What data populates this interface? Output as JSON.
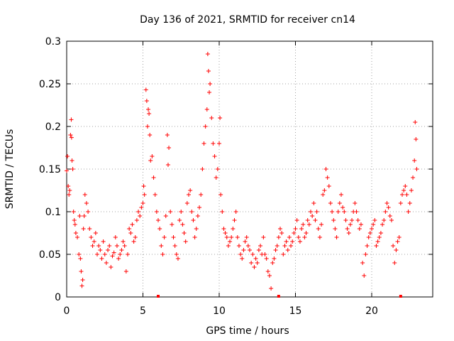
{
  "chart_data": {
    "type": "scatter",
    "title": "Day 136 of 2021, SRMTID for receiver cn14",
    "xlabel": "GPS time / hours",
    "ylabel": "SRMTID / TECUs",
    "xlim": [
      0,
      24
    ],
    "ylim": [
      0,
      0.3
    ],
    "xticks": [
      0,
      5,
      10,
      15,
      20
    ],
    "xtick_labels": [
      "0",
      "5",
      "10",
      "15",
      "20"
    ],
    "yticks": [
      0,
      0.05,
      0.1,
      0.15,
      0.2,
      0.25,
      0.3
    ],
    "ytick_labels": [
      "0",
      "0.05",
      "0.1",
      "0.15",
      "0.2",
      "0.25",
      "0.3"
    ],
    "grid": true,
    "marker": "+",
    "series": [
      {
        "name": "SRMTID",
        "color": "#ff0000",
        "points": [
          [
            0.0,
            0.148
          ],
          [
            0.05,
            0.165
          ],
          [
            0.1,
            0.13
          ],
          [
            0.15,
            0.12
          ],
          [
            0.2,
            0.125
          ],
          [
            0.25,
            0.19
          ],
          [
            0.3,
            0.208
          ],
          [
            0.32,
            0.187
          ],
          [
            0.35,
            0.16
          ],
          [
            0.4,
            0.15
          ],
          [
            0.45,
            0.1
          ],
          [
            0.5,
            0.09
          ],
          [
            0.55,
            0.085
          ],
          [
            0.6,
            0.075
          ],
          [
            0.7,
            0.07
          ],
          [
            0.8,
            0.05
          ],
          [
            0.85,
            0.095
          ],
          [
            0.9,
            0.045
          ],
          [
            0.95,
            0.03
          ],
          [
            1.0,
            0.013
          ],
          [
            1.05,
            0.02
          ],
          [
            1.1,
            0.08
          ],
          [
            1.15,
            0.095
          ],
          [
            1.2,
            0.12
          ],
          [
            1.3,
            0.11
          ],
          [
            1.4,
            0.1
          ],
          [
            1.5,
            0.08
          ],
          [
            1.6,
            0.07
          ],
          [
            1.7,
            0.06
          ],
          [
            1.8,
            0.065
          ],
          [
            1.9,
            0.075
          ],
          [
            2.0,
            0.05
          ],
          [
            2.1,
            0.06
          ],
          [
            2.2,
            0.055
          ],
          [
            2.3,
            0.045
          ],
          [
            2.4,
            0.065
          ],
          [
            2.5,
            0.05
          ],
          [
            2.6,
            0.04
          ],
          [
            2.7,
            0.055
          ],
          [
            2.8,
            0.06
          ],
          [
            2.9,
            0.035
          ],
          [
            3.0,
            0.048
          ],
          [
            3.1,
            0.052
          ],
          [
            3.2,
            0.07
          ],
          [
            3.3,
            0.06
          ],
          [
            3.4,
            0.045
          ],
          [
            3.5,
            0.05
          ],
          [
            3.6,
            0.055
          ],
          [
            3.7,
            0.065
          ],
          [
            3.8,
            0.06
          ],
          [
            3.9,
            0.03
          ],
          [
            4.0,
            0.05
          ],
          [
            4.1,
            0.08
          ],
          [
            4.2,
            0.075
          ],
          [
            4.3,
            0.085
          ],
          [
            4.4,
            0.065
          ],
          [
            4.5,
            0.07
          ],
          [
            4.6,
            0.09
          ],
          [
            4.7,
            0.1
          ],
          [
            4.8,
            0.095
          ],
          [
            4.9,
            0.105
          ],
          [
            5.0,
            0.11
          ],
          [
            5.05,
            0.13
          ],
          [
            5.1,
            0.12
          ],
          [
            5.2,
            0.243
          ],
          [
            5.25,
            0.23
          ],
          [
            5.3,
            0.2
          ],
          [
            5.35,
            0.22
          ],
          [
            5.4,
            0.215
          ],
          [
            5.45,
            0.19
          ],
          [
            5.5,
            0.16
          ],
          [
            5.6,
            0.165
          ],
          [
            5.7,
            0.14
          ],
          [
            5.8,
            0.12
          ],
          [
            5.9,
            0.1
          ],
          [
            6.0,
            0.09
          ],
          [
            6.1,
            0.08
          ],
          [
            6.2,
            0.06
          ],
          [
            6.3,
            0.05
          ],
          [
            6.4,
            0.07
          ],
          [
            6.5,
            0.095
          ],
          [
            6.6,
            0.19
          ],
          [
            6.65,
            0.155
          ],
          [
            6.7,
            0.175
          ],
          [
            6.8,
            0.1
          ],
          [
            6.9,
            0.085
          ],
          [
            7.0,
            0.07
          ],
          [
            7.1,
            0.06
          ],
          [
            7.2,
            0.05
          ],
          [
            7.3,
            0.045
          ],
          [
            7.4,
            0.09
          ],
          [
            7.5,
            0.1
          ],
          [
            7.6,
            0.085
          ],
          [
            7.7,
            0.075
          ],
          [
            7.8,
            0.065
          ],
          [
            7.9,
            0.11
          ],
          [
            8.0,
            0.12
          ],
          [
            8.1,
            0.125
          ],
          [
            8.2,
            0.1
          ],
          [
            8.3,
            0.09
          ],
          [
            8.4,
            0.07
          ],
          [
            8.5,
            0.08
          ],
          [
            8.6,
            0.095
          ],
          [
            8.7,
            0.105
          ],
          [
            8.8,
            0.12
          ],
          [
            8.9,
            0.15
          ],
          [
            9.0,
            0.18
          ],
          [
            9.1,
            0.2
          ],
          [
            9.2,
            0.22
          ],
          [
            9.25,
            0.285
          ],
          [
            9.3,
            0.265
          ],
          [
            9.35,
            0.24
          ],
          [
            9.4,
            0.25
          ],
          [
            9.5,
            0.21
          ],
          [
            9.6,
            0.18
          ],
          [
            9.7,
            0.165
          ],
          [
            9.8,
            0.14
          ],
          [
            9.9,
            0.15
          ],
          [
            10.0,
            0.18
          ],
          [
            10.05,
            0.21
          ],
          [
            10.1,
            0.12
          ],
          [
            10.2,
            0.1
          ],
          [
            10.3,
            0.08
          ],
          [
            10.4,
            0.075
          ],
          [
            10.5,
            0.07
          ],
          [
            10.6,
            0.06
          ],
          [
            10.7,
            0.065
          ],
          [
            10.8,
            0.07
          ],
          [
            10.9,
            0.08
          ],
          [
            11.0,
            0.09
          ],
          [
            11.1,
            0.1
          ],
          [
            11.2,
            0.07
          ],
          [
            11.3,
            0.06
          ],
          [
            11.4,
            0.05
          ],
          [
            11.5,
            0.045
          ],
          [
            11.6,
            0.055
          ],
          [
            11.7,
            0.065
          ],
          [
            11.8,
            0.07
          ],
          [
            11.9,
            0.06
          ],
          [
            12.0,
            0.055
          ],
          [
            12.1,
            0.04
          ],
          [
            12.2,
            0.05
          ],
          [
            12.3,
            0.035
          ],
          [
            12.4,
            0.045
          ],
          [
            12.5,
            0.04
          ],
          [
            12.6,
            0.055
          ],
          [
            12.7,
            0.06
          ],
          [
            12.8,
            0.05
          ],
          [
            12.9,
            0.07
          ],
          [
            13.0,
            0.05
          ],
          [
            13.1,
            0.045
          ],
          [
            13.2,
            0.03
          ],
          [
            13.3,
            0.025
          ],
          [
            13.4,
            0.01
          ],
          [
            13.5,
            0.04
          ],
          [
            13.6,
            0.045
          ],
          [
            13.7,
            0.055
          ],
          [
            13.8,
            0.06
          ],
          [
            13.9,
            0.07
          ],
          [
            14.0,
            0.08
          ],
          [
            14.1,
            0.075
          ],
          [
            14.2,
            0.05
          ],
          [
            14.3,
            0.06
          ],
          [
            14.4,
            0.065
          ],
          [
            14.5,
            0.055
          ],
          [
            14.6,
            0.07
          ],
          [
            14.7,
            0.06
          ],
          [
            14.8,
            0.065
          ],
          [
            14.9,
            0.075
          ],
          [
            15.0,
            0.08
          ],
          [
            15.1,
            0.09
          ],
          [
            15.2,
            0.07
          ],
          [
            15.3,
            0.065
          ],
          [
            15.4,
            0.08
          ],
          [
            15.5,
            0.085
          ],
          [
            15.6,
            0.07
          ],
          [
            15.7,
            0.075
          ],
          [
            15.8,
            0.09
          ],
          [
            15.9,
            0.085
          ],
          [
            16.0,
            0.1
          ],
          [
            16.1,
            0.095
          ],
          [
            16.2,
            0.11
          ],
          [
            16.3,
            0.09
          ],
          [
            16.4,
            0.1
          ],
          [
            16.5,
            0.08
          ],
          [
            16.6,
            0.07
          ],
          [
            16.7,
            0.085
          ],
          [
            16.8,
            0.12
          ],
          [
            16.9,
            0.125
          ],
          [
            17.0,
            0.15
          ],
          [
            17.1,
            0.14
          ],
          [
            17.2,
            0.13
          ],
          [
            17.3,
            0.11
          ],
          [
            17.4,
            0.1
          ],
          [
            17.5,
            0.09
          ],
          [
            17.6,
            0.08
          ],
          [
            17.7,
            0.07
          ],
          [
            17.8,
            0.1
          ],
          [
            17.9,
            0.11
          ],
          [
            18.0,
            0.12
          ],
          [
            18.1,
            0.105
          ],
          [
            18.2,
            0.1
          ],
          [
            18.3,
            0.09
          ],
          [
            18.4,
            0.08
          ],
          [
            18.5,
            0.075
          ],
          [
            18.6,
            0.085
          ],
          [
            18.7,
            0.09
          ],
          [
            18.8,
            0.1
          ],
          [
            18.9,
            0.11
          ],
          [
            19.0,
            0.1
          ],
          [
            19.1,
            0.09
          ],
          [
            19.2,
            0.08
          ],
          [
            19.3,
            0.085
          ],
          [
            19.4,
            0.04
          ],
          [
            19.5,
            0.025
          ],
          [
            19.6,
            0.05
          ],
          [
            19.7,
            0.06
          ],
          [
            19.8,
            0.07
          ],
          [
            19.9,
            0.075
          ],
          [
            20.0,
            0.08
          ],
          [
            20.1,
            0.085
          ],
          [
            20.2,
            0.09
          ],
          [
            20.3,
            0.06
          ],
          [
            20.4,
            0.065
          ],
          [
            20.5,
            0.07
          ],
          [
            20.6,
            0.075
          ],
          [
            20.7,
            0.085
          ],
          [
            20.8,
            0.09
          ],
          [
            20.9,
            0.1
          ],
          [
            21.0,
            0.11
          ],
          [
            21.1,
            0.105
          ],
          [
            21.2,
            0.095
          ],
          [
            21.3,
            0.09
          ],
          [
            21.4,
            0.06
          ],
          [
            21.5,
            0.04
          ],
          [
            21.6,
            0.055
          ],
          [
            21.7,
            0.065
          ],
          [
            21.8,
            0.07
          ],
          [
            21.9,
            0.11
          ],
          [
            22.0,
            0.12
          ],
          [
            22.1,
            0.125
          ],
          [
            22.2,
            0.13
          ],
          [
            22.3,
            0.12
          ],
          [
            22.4,
            0.1
          ],
          [
            22.5,
            0.11
          ],
          [
            22.6,
            0.125
          ],
          [
            22.7,
            0.14
          ],
          [
            22.8,
            0.16
          ],
          [
            22.85,
            0.205
          ],
          [
            22.9,
            0.185
          ],
          [
            22.95,
            0.15
          ]
        ]
      }
    ],
    "axis_markers_x": [
      6,
      13.9,
      21.9
    ]
  }
}
